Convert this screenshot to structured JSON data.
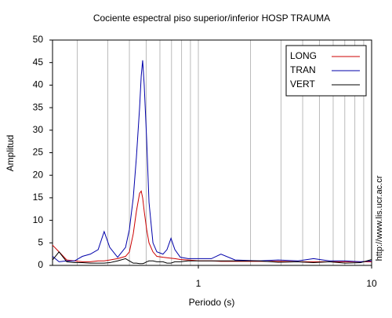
{
  "chart_data": {
    "type": "line",
    "title": "Cociente espectral piso superior/inferior  HOSP TRAUMA",
    "x_label": "Periodo (s)",
    "y_label": "Amplitud",
    "side_note": "http://www.lis.ucr.ac.cr",
    "x": [
      0.144,
      0.157,
      0.174,
      0.193,
      0.214,
      0.238,
      0.264,
      0.286,
      0.308,
      0.342,
      0.38,
      0.4,
      0.421,
      0.439,
      0.458,
      0.468,
      0.477,
      0.487,
      0.503,
      0.519,
      0.547,
      0.576,
      0.625,
      0.659,
      0.695,
      0.732,
      0.787,
      0.873,
      1.02,
      1.19,
      1.35,
      1.63,
      2.23,
      2.89,
      3.76,
      4.62,
      5.7,
      7.02,
      8.64,
      10
    ],
    "series": [
      {
        "name": "LONG",
        "color": "#cc0000",
        "values": [
          4.5,
          3,
          1.2,
          1,
          0.8,
          0.8,
          1,
          1,
          1.2,
          1.5,
          2,
          3,
          7,
          12,
          16,
          16.5,
          15,
          12,
          8,
          5,
          3,
          2,
          1.8,
          1.7,
          1.6,
          1.5,
          1.3,
          1.2,
          1,
          1,
          0.9,
          0.9,
          0.9,
          0.9,
          0.8,
          0.8,
          0.8,
          0.8,
          0.8,
          0.8
        ]
      },
      {
        "name": "TRAN",
        "color": "#0000aa",
        "values": [
          2,
          0.8,
          1,
          1,
          2,
          2.5,
          3.5,
          7.5,
          4,
          1.8,
          4,
          8,
          15,
          24,
          35,
          42,
          45.5,
          40,
          28,
          14,
          5,
          3,
          2.5,
          3.5,
          6,
          3.5,
          1.8,
          1.5,
          1.5,
          1.5,
          2.5,
          1.2,
          1,
          1.2,
          1,
          1.5,
          1,
          1,
          0.8,
          1
        ]
      },
      {
        "name": "VERT",
        "color": "#000000",
        "values": [
          1.2,
          3,
          0.8,
          0.6,
          0.6,
          0.5,
          0.5,
          0.5,
          0.6,
          1,
          1.5,
          1,
          0.5,
          0.5,
          0.4,
          0.4,
          0.4,
          0.5,
          0.8,
          1,
          1,
          0.8,
          0.8,
          0.5,
          0.5,
          0.8,
          0.8,
          1,
          1,
          1,
          1,
          1,
          1,
          0.7,
          0.8,
          0.6,
          0.8,
          0.5,
          0.6,
          1.3
        ]
      }
    ],
    "x_log": true,
    "xlim": [
      0.144,
      10
    ],
    "xticks": [
      1,
      10
    ],
    "x_minor_grid": [
      0.2,
      0.3,
      0.4,
      0.5,
      0.6,
      0.7,
      0.8,
      0.9,
      2,
      3,
      4,
      5,
      6,
      7,
      8,
      9
    ],
    "ylim": [
      0,
      50
    ],
    "yticks": [
      0,
      5,
      10,
      15,
      20,
      25,
      30,
      35,
      40,
      45,
      50
    ],
    "grid": true,
    "legend": "top-right"
  }
}
